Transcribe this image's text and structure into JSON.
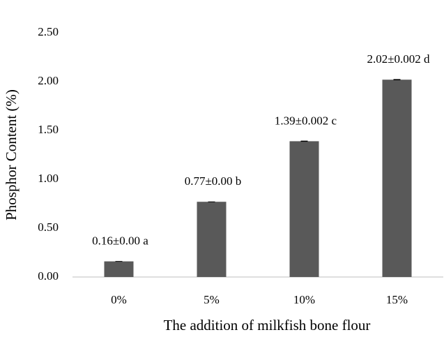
{
  "chart_data": {
    "type": "bar",
    "categories": [
      "0%",
      "5%",
      "10%",
      "15%"
    ],
    "values": [
      0.16,
      0.77,
      1.39,
      2.02
    ],
    "errors": [
      0.0,
      0.0,
      0.002,
      0.002
    ],
    "value_labels": [
      "0.16±0.00 a",
      "0.77±0.00 b",
      "1.39±0.002 c",
      "2.02±0.002 d"
    ],
    "color": "#595959",
    "x_label": "The addition of milkfish bone flour",
    "y_label": "Phosphor Content (%)",
    "ylim": [
      0,
      2.5
    ],
    "yticks": [
      {
        "value": 0,
        "label": "0.00"
      },
      {
        "value": 0.5,
        "label": "0.50"
      },
      {
        "value": 1,
        "label": "1.00"
      },
      {
        "value": 1.5,
        "label": "1.50"
      },
      {
        "value": 2,
        "label": "2.00"
      },
      {
        "value": 2.5,
        "label": "2.50"
      }
    ],
    "grid": false
  }
}
